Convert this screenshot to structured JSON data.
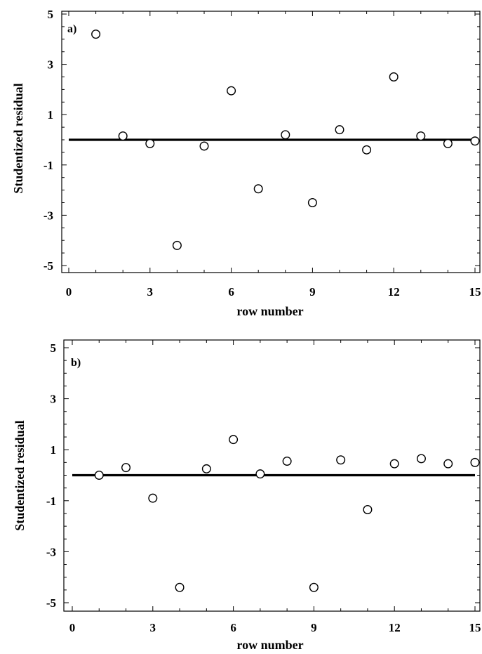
{
  "chart_data": [
    {
      "type": "scatter",
      "panel_label": "a)",
      "xlabel": "row number",
      "ylabel": "Studentized residual",
      "xlim": [
        0,
        15
      ],
      "ylim": [
        -5.3,
        5.2
      ],
      "xticks": [
        "0",
        "3",
        "6",
        "9",
        "12",
        "15"
      ],
      "yticks": [
        "5",
        "3",
        "1",
        "-1",
        "-3",
        "-5"
      ],
      "reference_line_y": 0,
      "grid": false,
      "series": [
        {
          "x": [
            1,
            2,
            3,
            4,
            5,
            6,
            7,
            8,
            9,
            10,
            11,
            12,
            13,
            14,
            15
          ],
          "y": [
            4.2,
            0.15,
            -0.15,
            -4.2,
            -0.25,
            1.95,
            -1.95,
            0.2,
            -2.5,
            0.4,
            -0.4,
            2.5,
            0.15,
            -0.15,
            -0.05
          ]
        }
      ]
    },
    {
      "type": "scatter",
      "panel_label": "b)",
      "xlabel": "row number",
      "ylabel": "Studentized residual",
      "xlim": [
        0,
        15
      ],
      "ylim": [
        -5.3,
        5.2
      ],
      "xticks": [
        "0",
        "3",
        "6",
        "9",
        "12",
        "15"
      ],
      "yticks": [
        "5",
        "3",
        "1",
        "-1",
        "-3",
        "-5"
      ],
      "reference_line_y": 0,
      "grid": false,
      "series": [
        {
          "x": [
            1,
            2,
            3,
            4,
            5,
            6,
            7,
            8,
            9,
            10,
            11,
            12,
            13,
            14,
            15
          ],
          "y": [
            0,
            0.3,
            -0.9,
            -4.4,
            0.25,
            1.4,
            0.05,
            0.55,
            -4.4,
            0.6,
            -1.35,
            0.45,
            0.65,
            0.45,
            0.5
          ]
        }
      ]
    }
  ]
}
